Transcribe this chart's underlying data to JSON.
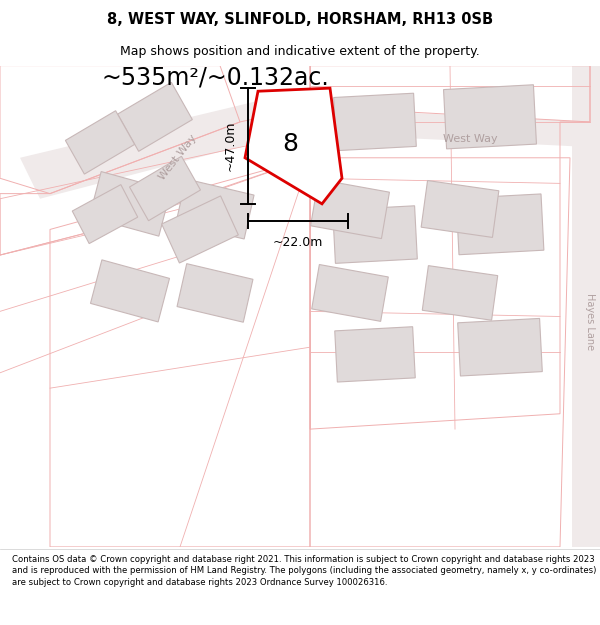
{
  "title_line1": "8, WEST WAY, SLINFOLD, HORSHAM, RH13 0SB",
  "title_line2": "Map shows position and indicative extent of the property.",
  "area_label": "~535m²/~0.132ac.",
  "plot_number": "8",
  "dim_vertical": "~47.0m",
  "dim_horizontal": "~22.0m",
  "road_label_diag": "West Way",
  "road_label_horiz": "West Way",
  "road_label_vert": "Hayes Lane",
  "footer_text": "Contains OS data © Crown copyright and database right 2021. This information is subject to Crown copyright and database rights 2023 and is reproduced with the permission of HM Land Registry. The polygons (including the associated geometry, namely x, y co-ordinates) are subject to Crown copyright and database rights 2023 Ordnance Survey 100026316.",
  "bg_color": "#ffffff",
  "map_bg": "#ffffff",
  "plot_fill": "#ffffff",
  "plot_edge": "#dd0000",
  "building_fill": "#e0dada",
  "building_edge": "#e0dada",
  "plot_outline_color": "#f0b0b0",
  "road_label_color": "#b0a0a0",
  "dim_color": "#000000",
  "text_color": "#000000",
  "title_fontsize": 10.5,
  "subtitle_fontsize": 9,
  "area_fontsize": 17,
  "plot_num_fontsize": 18,
  "dim_fontsize": 9,
  "road_fontsize": 8,
  "footer_fontsize": 6.1
}
